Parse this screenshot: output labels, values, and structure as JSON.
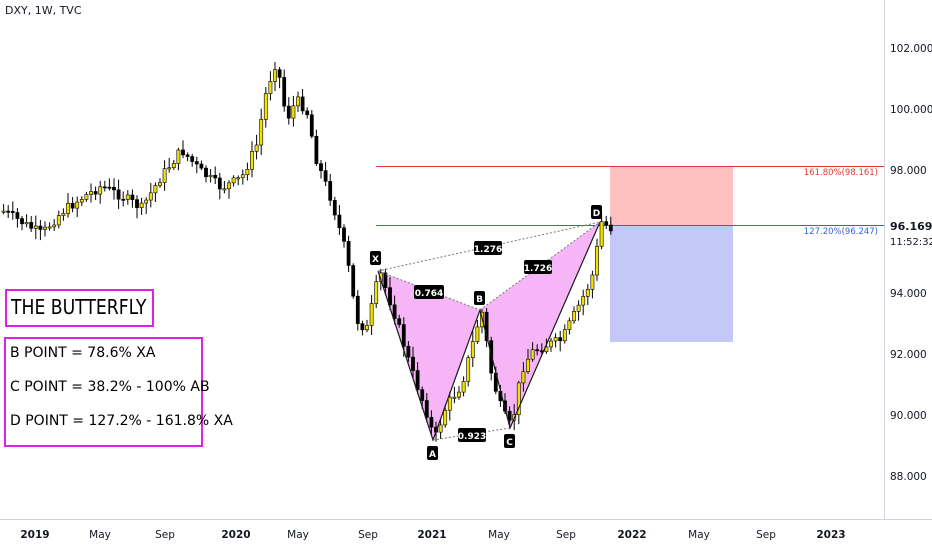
{
  "header": {
    "symbol_label": "DXY, 1W, TVC"
  },
  "price_axis": {
    "ticks": [
      "102.000",
      "100.000",
      "98.000",
      "94.000",
      "92.000",
      "90.000",
      "88.000"
    ],
    "current_price": "96.169",
    "countdown": "11:52:32"
  },
  "time_axis": {
    "ticks": [
      {
        "label": "2019",
        "bold": true
      },
      {
        "label": "May",
        "bold": false
      },
      {
        "label": "Sep",
        "bold": false
      },
      {
        "label": "2020",
        "bold": true
      },
      {
        "label": "May",
        "bold": false
      },
      {
        "label": "Sep",
        "bold": false
      },
      {
        "label": "2021",
        "bold": true
      },
      {
        "label": "May",
        "bold": false
      },
      {
        "label": "Sep",
        "bold": false
      },
      {
        "label": "2022",
        "bold": true
      },
      {
        "label": "May",
        "bold": false
      },
      {
        "label": "Sep",
        "bold": false
      },
      {
        "label": "2023",
        "bold": true
      }
    ]
  },
  "levels": {
    "fib_1618": "161.80%(98.161)",
    "fib_1272": "127.20%(96.247)"
  },
  "pattern": {
    "points": {
      "X": "X",
      "A": "A",
      "B": "B",
      "C": "C",
      "D": "D"
    },
    "ratios": {
      "xb": "0.764",
      "ac": "0.923",
      "bd": "1.726",
      "xd": "1.276"
    }
  },
  "info": {
    "title": "THE BUTTERFLY",
    "rules": [
      "B POINT = 78.6% XA",
      "C POINT = 38.2% - 100% AB",
      "D POINT = 127.2% - 161.8% XA"
    ]
  },
  "colors": {
    "bull_candle": "#f5e000",
    "bear_candle": "#000000",
    "pattern_fill": "#f5a8f5",
    "stop_zone": "#ffc0c0",
    "target_zone": "#c4c8f8",
    "fib_1618_line": "#e53935",
    "fib_1272_line": "#3a5fe0",
    "box_border": "#e020e0"
  }
}
